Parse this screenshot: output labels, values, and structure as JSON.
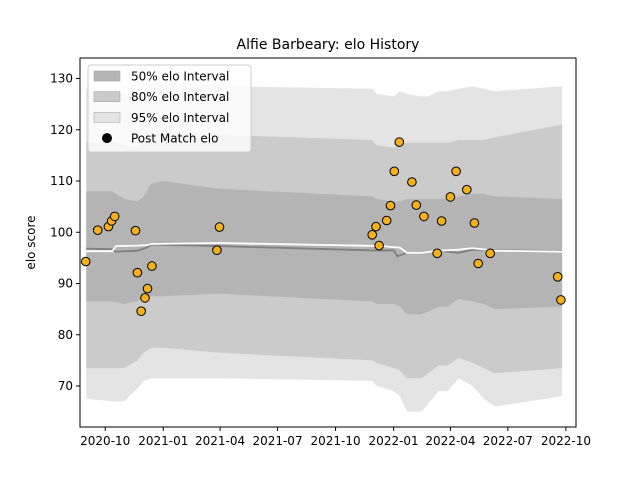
{
  "chart_data": {
    "type": "line",
    "title": "Alfie Barbeary: elo History",
    "xlabel": "",
    "ylabel": "elo score",
    "xlim": [
      "2020-08-22",
      "2022-10-17"
    ],
    "ylim": [
      62,
      134
    ],
    "x_ticks": [
      "2020-10",
      "2021-01",
      "2021-04",
      "2021-07",
      "2021-10",
      "2022-01",
      "2022-04",
      "2022-07",
      "2022-10"
    ],
    "y_ticks": [
      70,
      80,
      90,
      100,
      110,
      120,
      130
    ],
    "grid": false,
    "legend_position": "top-left",
    "legend": [
      {
        "label": "50% elo Interval",
        "kind": "patch",
        "color": "#b4b4b4"
      },
      {
        "label": "80% elo Interval",
        "kind": "patch",
        "color": "#cbcbcb"
      },
      {
        "label": "95% elo Interval",
        "kind": "patch",
        "color": "#e4e4e4"
      },
      {
        "label": "Post Match elo",
        "kind": "marker",
        "color": "#000000"
      }
    ],
    "colors": {
      "band_50": "#b4b4b4",
      "band_80": "#cbcbcb",
      "band_95": "#e4e4e4",
      "mean_line": "#808080",
      "median_line": "#ffffff",
      "points_fill": "#f5b020",
      "points_edge": "#000000"
    },
    "bands": {
      "x": [
        "2020-09-01",
        "2020-10-12",
        "2020-10-31",
        "2020-11-21",
        "2020-12-01",
        "2020-12-13",
        "2020-12-30",
        "2021-03-31",
        "2021-11-28",
        "2021-12-05",
        "2022-01-01",
        "2022-01-11",
        "2022-01-22",
        "2022-02-14",
        "2022-02-25",
        "2022-03-13",
        "2022-03-28",
        "2022-04-14",
        "2022-05-06",
        "2022-05-24",
        "2022-06-10",
        "2022-09-25"
      ],
      "p95_low": [
        67.5,
        67.0,
        67.0,
        69.5,
        71.0,
        71.5,
        71.5,
        71.5,
        71.0,
        70.0,
        69.0,
        68.0,
        65.0,
        65.0,
        66.5,
        69.0,
        69.0,
        71.5,
        70.0,
        67.5,
        66.0,
        68.0
      ],
      "p80_low": [
        73.5,
        73.5,
        73.5,
        75.0,
        76.5,
        77.5,
        77.5,
        76.5,
        75.0,
        74.5,
        73.5,
        73.0,
        71.5,
        71.5,
        72.5,
        74.0,
        74.0,
        75.5,
        74.5,
        73.5,
        72.5,
        73.5
      ],
      "p50_low": [
        86.5,
        86.5,
        86.0,
        86.5,
        87.5,
        87.5,
        87.5,
        88.0,
        86.5,
        86.0,
        86.0,
        85.5,
        84.0,
        84.0,
        84.5,
        85.5,
        85.5,
        87.0,
        86.5,
        86.0,
        85.0,
        85.5
      ],
      "p50_high": [
        108.0,
        108.0,
        106.5,
        106.0,
        107.0,
        109.5,
        110.0,
        108.5,
        107.0,
        106.5,
        106.0,
        106.0,
        106.5,
        106.5,
        106.5,
        106.5,
        106.5,
        107.0,
        107.5,
        107.5,
        107.0,
        106.5
      ],
      "p80_high": [
        117.5,
        117.5,
        117.0,
        116.5,
        117.5,
        119.0,
        119.5,
        119.0,
        118.0,
        117.0,
        116.5,
        117.0,
        117.5,
        117.5,
        117.5,
        117.5,
        117.5,
        118.0,
        118.0,
        118.0,
        118.5,
        121.0
      ],
      "p95_high": [
        128.0,
        127.5,
        127.0,
        126.5,
        127.5,
        129.0,
        129.5,
        128.5,
        128.0,
        127.0,
        126.5,
        127.5,
        127.0,
        126.5,
        126.5,
        127.5,
        127.5,
        128.0,
        128.5,
        128.0,
        127.5,
        128.5
      ]
    },
    "mean_line": {
      "x": [
        "2020-09-01",
        "2020-10-12",
        "2020-10-18",
        "2020-11-21",
        "2020-12-06",
        "2020-12-13",
        "2021-03-31",
        "2021-12-15",
        "2022-01-01",
        "2022-01-07",
        "2022-01-22",
        "2022-02-14",
        "2022-03-13",
        "2022-04-14",
        "2022-05-06",
        "2022-06-10",
        "2022-09-25"
      ],
      "y": [
        96.8,
        96.7,
        96.2,
        96.4,
        97.0,
        97.6,
        97.3,
        96.4,
        96.5,
        95.3,
        96.0,
        96.0,
        96.4,
        96.0,
        96.6,
        96.5,
        96.3
      ]
    },
    "median_line": {
      "x": [
        "2020-09-01",
        "2020-10-12",
        "2020-10-18",
        "2020-11-21",
        "2020-12-06",
        "2020-12-13",
        "2021-03-31",
        "2021-12-15",
        "2022-01-01",
        "2022-01-11",
        "2022-01-22",
        "2022-02-14",
        "2022-03-13",
        "2022-04-14",
        "2022-05-06",
        "2022-06-10",
        "2022-09-25"
      ],
      "y": [
        96.3,
        96.3,
        97.3,
        97.4,
        97.5,
        97.7,
        97.9,
        97.3,
        97.1,
        97.0,
        96.0,
        96.0,
        96.4,
        96.6,
        96.9,
        96.4,
        96.2
      ]
    },
    "points": {
      "x": [
        "2020-08-31",
        "2020-09-19",
        "2020-10-06",
        "2020-10-11",
        "2020-10-16",
        "2020-11-18",
        "2020-11-21",
        "2020-11-27",
        "2020-12-03",
        "2020-12-07",
        "2020-12-14",
        "2021-03-27",
        "2021-03-31",
        "2021-11-28",
        "2021-12-04",
        "2021-12-09",
        "2021-12-21",
        "2021-12-27",
        "2022-01-02",
        "2022-01-10",
        "2022-01-30",
        "2022-02-06",
        "2022-02-18",
        "2022-03-11",
        "2022-03-18",
        "2022-04-01",
        "2022-04-10",
        "2022-04-27",
        "2022-05-09",
        "2022-05-15",
        "2022-06-03",
        "2022-09-18",
        "2022-09-23"
      ],
      "y": [
        94.3,
        100.4,
        101.1,
        102.2,
        103.1,
        100.3,
        92.1,
        84.6,
        87.2,
        89.0,
        93.4,
        96.5,
        101.0,
        99.5,
        101.1,
        97.4,
        102.3,
        105.2,
        111.9,
        117.6,
        109.8,
        105.3,
        103.1,
        95.9,
        102.2,
        106.9,
        111.9,
        108.3,
        101.8,
        93.9,
        95.9,
        91.3,
        86.8
      ]
    }
  }
}
